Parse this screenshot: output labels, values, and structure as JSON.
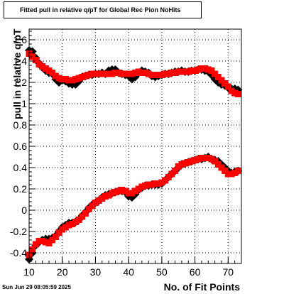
{
  "chart_data": {
    "type": "scatter",
    "title": "Fitted pull in relative q/pT for Global Rec Pion NoHits",
    "xlabel": "No. of Fit Points",
    "ylabel": "pull in relative q/pT",
    "xlim": [
      10,
      74
    ],
    "ylim": [
      -0.5,
      1.7
    ],
    "x_ticks": [
      10,
      20,
      30,
      40,
      50,
      60,
      70
    ],
    "y_ticks": [
      -0.4,
      -0.2,
      0,
      0.2,
      0.4,
      0.6,
      0.8,
      1,
      1.2,
      1.4,
      1.6
    ],
    "grid": "dotted",
    "footer": "Sun Jun 29 08:05:59 2025",
    "series": [
      {
        "color": "#000000",
        "marker": "diamond",
        "x": [
          10,
          11,
          12,
          13,
          14,
          15,
          16,
          17,
          18,
          19,
          20,
          21,
          22,
          23,
          24,
          25,
          26,
          27,
          28,
          29,
          30,
          31,
          32,
          33,
          34,
          35,
          36,
          37,
          38,
          39,
          40,
          41,
          42,
          43,
          44,
          45,
          46,
          47,
          48,
          49,
          50,
          51,
          52,
          53,
          54,
          55,
          56,
          57,
          58,
          59,
          60,
          61,
          62,
          63,
          64,
          65,
          66,
          67,
          68,
          69,
          70,
          71,
          72,
          73
        ],
        "y": [
          1.5,
          1.49,
          1.43,
          1.38,
          1.34,
          1.31,
          1.29,
          1.28,
          1.23,
          1.2,
          1.22,
          1.21,
          1.19,
          1.18,
          1.18,
          1.21,
          1.25,
          1.26,
          1.27,
          1.27,
          1.28,
          1.28,
          1.29,
          1.28,
          1.31,
          1.32,
          1.32,
          1.29,
          1.28,
          1.27,
          1.26,
          1.23,
          1.25,
          1.29,
          1.31,
          1.3,
          1.29,
          1.26,
          1.25,
          1.26,
          1.27,
          1.28,
          1.28,
          1.29,
          1.3,
          1.3,
          1.31,
          1.3,
          1.3,
          1.31,
          1.31,
          1.32,
          1.32,
          1.31,
          1.3,
          1.27,
          1.23,
          1.2,
          1.18,
          1.17,
          1.15,
          1.14,
          1.14,
          1.13
        ]
      },
      {
        "color": "#ff0000",
        "marker": "square",
        "x": [
          10,
          11,
          12,
          13,
          14,
          15,
          16,
          17,
          18,
          19,
          20,
          21,
          22,
          23,
          24,
          25,
          26,
          27,
          28,
          29,
          30,
          31,
          32,
          33,
          34,
          35,
          36,
          37,
          38,
          39,
          40,
          41,
          42,
          43,
          44,
          45,
          46,
          47,
          48,
          49,
          50,
          51,
          52,
          53,
          54,
          55,
          56,
          57,
          58,
          59,
          60,
          61,
          62,
          63,
          64,
          65,
          66,
          67,
          68,
          69,
          70,
          71,
          72,
          73
        ],
        "y": [
          1.47,
          1.44,
          1.41,
          1.37,
          1.35,
          1.33,
          1.31,
          1.29,
          1.26,
          1.24,
          1.23,
          1.23,
          1.22,
          1.22,
          1.23,
          1.24,
          1.25,
          1.26,
          1.27,
          1.28,
          1.28,
          1.28,
          1.28,
          1.28,
          1.28,
          1.28,
          1.29,
          1.29,
          1.28,
          1.28,
          1.28,
          1.28,
          1.29,
          1.3,
          1.29,
          1.29,
          1.28,
          1.27,
          1.27,
          1.27,
          1.27,
          1.28,
          1.28,
          1.29,
          1.29,
          1.3,
          1.3,
          1.3,
          1.3,
          1.31,
          1.31,
          1.32,
          1.33,
          1.33,
          1.32,
          1.31,
          1.28,
          1.25,
          1.22,
          1.19,
          1.16,
          1.12,
          1.1,
          1.09
        ]
      },
      {
        "color": "#000000",
        "marker": "diamond",
        "x": [
          10,
          11,
          12,
          13,
          14,
          15,
          16,
          17,
          18,
          19,
          20,
          21,
          22,
          23,
          24,
          25,
          26,
          27,
          28,
          29,
          30,
          31,
          32,
          33,
          34,
          35,
          36,
          37,
          38,
          39,
          40,
          41,
          42,
          43,
          44,
          45,
          46,
          47,
          48,
          49,
          50,
          51,
          52,
          53,
          54,
          55,
          56,
          57,
          58,
          59,
          60,
          61,
          62,
          63,
          64,
          65,
          66,
          67,
          68,
          69,
          70,
          71,
          72,
          73
        ],
        "y": [
          -0.46,
          -0.4,
          -0.33,
          -0.3,
          -0.28,
          -0.27,
          -0.27,
          -0.26,
          -0.24,
          -0.2,
          -0.16,
          -0.14,
          -0.12,
          -0.12,
          -0.11,
          -0.09,
          -0.05,
          -0.02,
          0.02,
          0.05,
          0.07,
          0.09,
          0.12,
          0.14,
          0.15,
          0.16,
          0.17,
          0.18,
          0.18,
          0.17,
          0.13,
          0.12,
          0.15,
          0.19,
          0.21,
          0.23,
          0.23,
          0.24,
          0.24,
          0.24,
          0.25,
          0.28,
          0.31,
          0.34,
          0.37,
          0.4,
          0.43,
          0.44,
          0.45,
          0.46,
          0.47,
          0.48,
          0.48,
          0.49,
          0.5,
          0.48,
          0.47,
          0.46,
          0.43,
          0.4,
          0.37,
          0.35,
          0.36,
          0.37
        ]
      },
      {
        "color": "#ff0000",
        "marker": "square",
        "x": [
          10,
          11,
          12,
          13,
          14,
          15,
          16,
          17,
          18,
          19,
          20,
          21,
          22,
          23,
          24,
          25,
          26,
          27,
          28,
          29,
          30,
          31,
          32,
          33,
          34,
          35,
          36,
          37,
          38,
          39,
          40,
          41,
          42,
          43,
          44,
          45,
          46,
          47,
          48,
          49,
          50,
          51,
          52,
          53,
          54,
          55,
          56,
          57,
          58,
          59,
          60,
          61,
          62,
          63,
          64,
          65,
          66,
          67,
          68,
          69,
          70,
          71,
          72,
          73
        ],
        "y": [
          -0.42,
          -0.37,
          -0.32,
          -0.29,
          -0.29,
          -0.3,
          -0.31,
          -0.28,
          -0.25,
          -0.21,
          -0.18,
          -0.16,
          -0.14,
          -0.13,
          -0.11,
          -0.09,
          -0.06,
          -0.03,
          0.01,
          0.04,
          0.07,
          0.09,
          0.11,
          0.13,
          0.14,
          0.16,
          0.17,
          0.18,
          0.19,
          0.18,
          0.16,
          0.16,
          0.18,
          0.2,
          0.22,
          0.23,
          0.24,
          0.24,
          0.25,
          0.25,
          0.26,
          0.28,
          0.31,
          0.34,
          0.37,
          0.41,
          0.43,
          0.44,
          0.45,
          0.46,
          0.47,
          0.48,
          0.49,
          0.49,
          0.49,
          0.48,
          0.46,
          0.43,
          0.4,
          0.37,
          0.34,
          0.34,
          0.35,
          0.37
        ]
      }
    ]
  }
}
